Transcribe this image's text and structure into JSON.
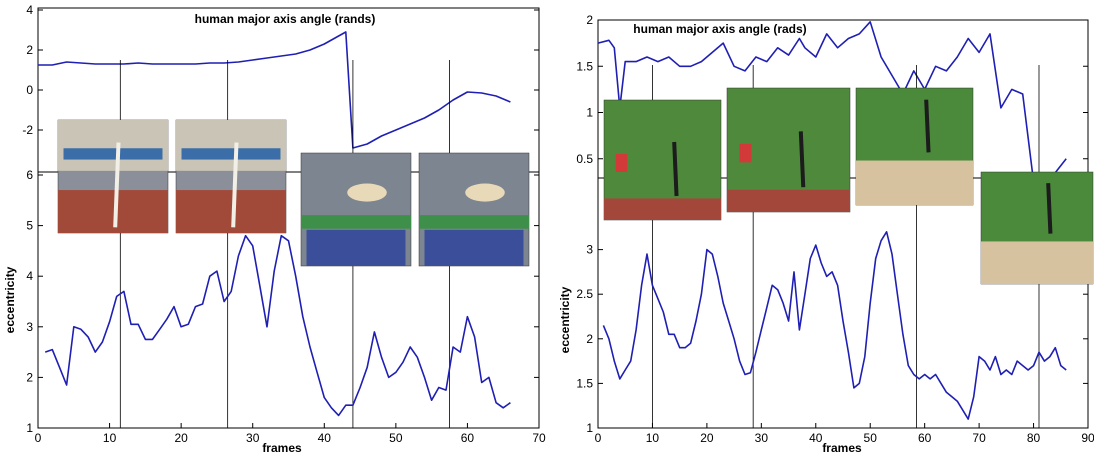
{
  "chart_data": [
    {
      "type": "line",
      "title": "human major axis angle (rands)",
      "xlabel": "",
      "ylabel": "",
      "xlim": [
        0,
        70
      ],
      "ylim": [
        -3,
        4
      ],
      "yticks": [
        4,
        2,
        0,
        -2
      ],
      "grid": false,
      "series": [
        {
          "color": "#1f1fb4",
          "x": [
            0,
            2,
            4,
            6,
            8,
            10,
            12,
            14,
            16,
            18,
            20,
            22,
            24,
            26,
            28,
            30,
            32,
            34,
            36,
            38,
            40,
            42,
            43,
            44,
            46,
            48,
            50,
            52,
            54,
            56,
            58,
            60,
            62,
            64,
            66
          ],
          "y": [
            1.25,
            1.25,
            1.4,
            1.35,
            1.3,
            1.3,
            1.3,
            1.35,
            1.3,
            1.3,
            1.3,
            1.3,
            1.35,
            1.35,
            1.4,
            1.5,
            1.6,
            1.7,
            1.8,
            2.0,
            2.3,
            2.7,
            2.9,
            -2.9,
            -2.7,
            -2.3,
            -2.0,
            -1.7,
            -1.4,
            -1.0,
            -0.5,
            -0.1,
            -0.15,
            -0.3,
            -0.6
          ]
        }
      ]
    },
    {
      "type": "line",
      "title": "",
      "xlabel": "frames",
      "ylabel": "eccentricity",
      "xlim": [
        0,
        70
      ],
      "ylim": [
        1,
        6
      ],
      "xticks": [
        0,
        10,
        20,
        30,
        40,
        50,
        60,
        70
      ],
      "yticks": [
        1,
        2,
        3,
        4,
        5,
        6
      ],
      "vlines": [
        11.5,
        26.5,
        44,
        57.5
      ],
      "grid": false,
      "series": [
        {
          "color": "#1f1fb4",
          "x": [
            1,
            2,
            3,
            4,
            5,
            6,
            7,
            8,
            9,
            10,
            11,
            12,
            13,
            14,
            15,
            16,
            17,
            18,
            19,
            20,
            21,
            22,
            23,
            24,
            25,
            26,
            27,
            28,
            29,
            30,
            31,
            32,
            33,
            34,
            35,
            36,
            37,
            38,
            39,
            40,
            41,
            42,
            43,
            44,
            45,
            46,
            47,
            48,
            49,
            50,
            51,
            52,
            53,
            54,
            55,
            56,
            57,
            58,
            59,
            60,
            61,
            62,
            63,
            64,
            65,
            66
          ],
          "y": [
            2.5,
            2.55,
            2.2,
            1.85,
            3.0,
            2.95,
            2.8,
            2.5,
            2.7,
            3.1,
            3.6,
            3.7,
            3.05,
            3.05,
            2.75,
            2.75,
            2.95,
            3.15,
            3.4,
            3.0,
            3.05,
            3.4,
            3.45,
            4.0,
            4.1,
            3.5,
            3.7,
            4.4,
            4.8,
            4.6,
            3.8,
            3.0,
            4.1,
            4.8,
            4.7,
            4.0,
            3.2,
            2.6,
            2.1,
            1.6,
            1.4,
            1.25,
            1.45,
            1.45,
            1.8,
            2.2,
            2.9,
            2.4,
            2.0,
            2.1,
            2.3,
            2.6,
            2.4,
            2.0,
            1.55,
            1.8,
            1.75,
            2.6,
            2.5,
            3.2,
            2.8,
            1.9,
            2.0,
            1.5,
            1.4,
            1.5
          ]
        }
      ]
    },
    {
      "type": "line",
      "title": "human major axis angle (rads)",
      "xlabel": "",
      "ylabel": "",
      "xlim": [
        0,
        90
      ],
      "ylim": [
        0,
        2
      ],
      "yticks": [
        2,
        1.5,
        1,
        0.5
      ],
      "grid": false,
      "series": [
        {
          "color": "#1f1fb4",
          "x": [
            0,
            2,
            3,
            4,
            5,
            7,
            9,
            11,
            13,
            15,
            17,
            19,
            21,
            23,
            25,
            27,
            29,
            31,
            33,
            35,
            37,
            38,
            40,
            42,
            44,
            46,
            48,
            50,
            52,
            54,
            56,
            58,
            60,
            62,
            64,
            66,
            68,
            70,
            72,
            74,
            76,
            78,
            80,
            82,
            84,
            86
          ],
          "y": [
            1.75,
            1.78,
            1.7,
            1.05,
            1.55,
            1.55,
            1.6,
            1.55,
            1.6,
            1.5,
            1.5,
            1.55,
            1.65,
            1.75,
            1.5,
            1.45,
            1.6,
            1.55,
            1.7,
            1.62,
            1.8,
            1.7,
            1.6,
            1.85,
            1.7,
            1.8,
            1.85,
            1.98,
            1.6,
            1.4,
            1.2,
            1.45,
            1.25,
            1.5,
            1.45,
            1.6,
            1.8,
            1.65,
            1.85,
            1.05,
            1.25,
            1.2,
            0.25,
            0.28,
            0.35,
            0.5
          ]
        }
      ]
    },
    {
      "type": "line",
      "title": "",
      "xlabel": "frames",
      "ylabel": "eccentricity",
      "xlim": [
        0,
        90
      ],
      "ylim": [
        1,
        3.5
      ],
      "xticks": [
        0,
        10,
        20,
        30,
        40,
        50,
        60,
        70,
        80,
        90
      ],
      "yticks": [
        1,
        1.5,
        2,
        2.5,
        3
      ],
      "vlines": [
        10,
        28.5,
        58.5,
        81
      ],
      "grid": false,
      "series": [
        {
          "color": "#1f1fb4",
          "x": [
            1,
            2,
            3,
            4,
            5,
            6,
            7,
            8,
            9,
            10,
            11,
            12,
            13,
            14,
            15,
            16,
            17,
            18,
            19,
            20,
            21,
            22,
            23,
            24,
            25,
            26,
            27,
            28,
            29,
            30,
            31,
            32,
            33,
            34,
            35,
            36,
            37,
            38,
            39,
            40,
            41,
            42,
            43,
            44,
            45,
            46,
            47,
            48,
            49,
            50,
            51,
            52,
            53,
            54,
            55,
            56,
            57,
            58,
            59,
            60,
            61,
            62,
            63,
            64,
            65,
            66,
            67,
            68,
            69,
            70,
            71,
            72,
            73,
            74,
            75,
            76,
            77,
            78,
            79,
            80,
            81,
            82,
            83,
            84,
            85,
            86
          ],
          "y": [
            2.15,
            2.0,
            1.75,
            1.55,
            1.65,
            1.75,
            2.1,
            2.6,
            2.95,
            2.6,
            2.45,
            2.3,
            2.05,
            2.05,
            1.9,
            1.9,
            1.95,
            2.2,
            2.5,
            3.0,
            2.95,
            2.7,
            2.4,
            2.2,
            2.0,
            1.75,
            1.6,
            1.62,
            1.85,
            2.1,
            2.35,
            2.6,
            2.55,
            2.4,
            2.2,
            2.75,
            2.1,
            2.5,
            2.9,
            3.05,
            2.85,
            2.7,
            2.75,
            2.6,
            2.2,
            1.85,
            1.45,
            1.5,
            1.8,
            2.4,
            2.9,
            3.1,
            3.2,
            2.95,
            2.5,
            2.05,
            1.7,
            1.6,
            1.55,
            1.6,
            1.55,
            1.6,
            1.5,
            1.4,
            1.35,
            1.3,
            1.2,
            1.1,
            1.35,
            1.8,
            1.75,
            1.65,
            1.8,
            1.6,
            1.65,
            1.6,
            1.75,
            1.7,
            1.65,
            1.7,
            1.85,
            1.75,
            1.8,
            1.9,
            1.7,
            1.65
          ]
        }
      ]
    }
  ]
}
